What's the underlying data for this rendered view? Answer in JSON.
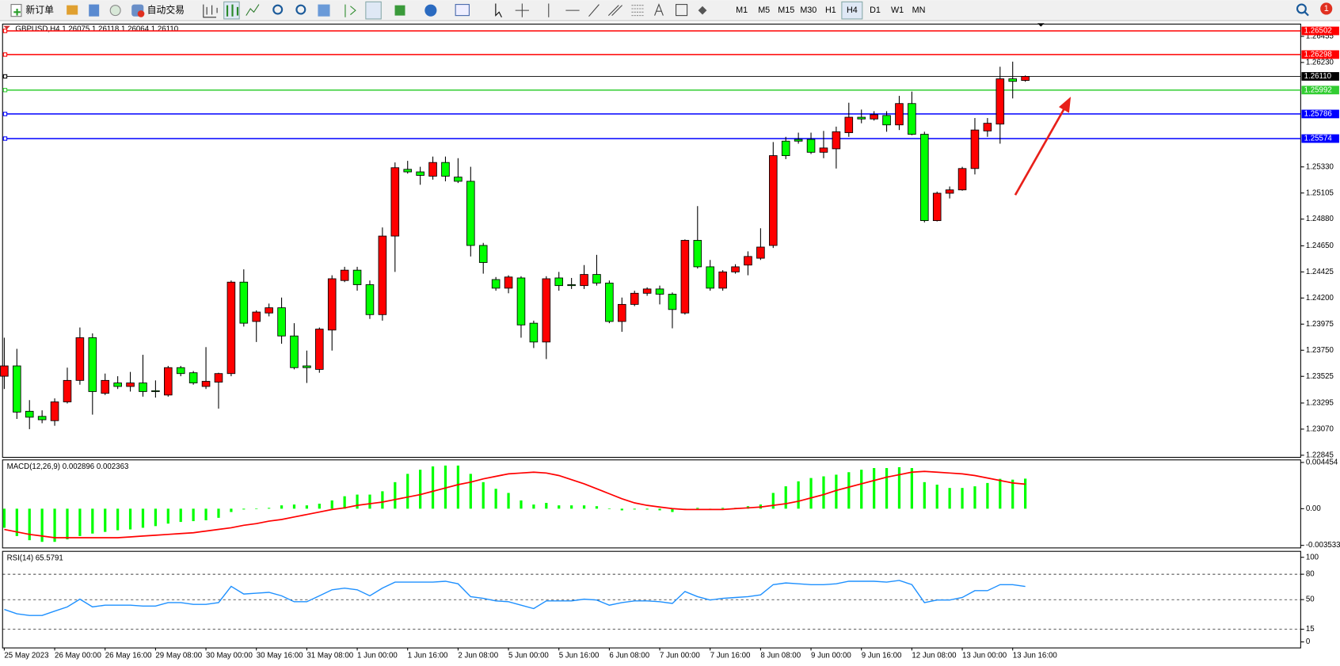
{
  "toolbar": {
    "new_order": "新订单",
    "auto_trading": "自动交易",
    "timeframes": [
      "M1",
      "M5",
      "M15",
      "M30",
      "H1",
      "H4",
      "D1",
      "W1",
      "MN"
    ],
    "active_timeframe": "H4",
    "badge": "1"
  },
  "chart_data": [
    {
      "type": "candlestick",
      "title": "GBPUSD,H4  1.26075 1.26118 1.26064 1.26110",
      "categories": [
        "25 May 2023",
        null,
        null,
        null,
        "26 May 00:00",
        null,
        null,
        null,
        "26 May 16:00",
        null,
        null,
        null,
        "29 May 08:00",
        null,
        null,
        null,
        "30 May 00:00",
        null,
        null,
        null,
        "30 May 16:00",
        null,
        null,
        null,
        "31 May 08:00",
        null,
        null,
        null,
        "1 Jun 00:00",
        null,
        null,
        null,
        "1 Jun 16:00",
        null,
        null,
        null,
        "2 Jun 08:00",
        null,
        null,
        null,
        "5 Jun 00:00",
        null,
        null,
        null,
        "5 Jun 16:00",
        null,
        null,
        null,
        "6 Jun 08:00",
        null,
        null,
        null,
        "7 Jun 00:00",
        null,
        null,
        null,
        "7 Jun 16:00",
        null,
        null,
        null,
        "8 Jun 08:00",
        null,
        null,
        null,
        "9 Jun 00:00",
        null,
        null,
        null,
        "9 Jun 16:00",
        null,
        null,
        null,
        "12 Jun 08:00",
        null,
        null,
        null,
        "13 Jun 00:00",
        null,
        null,
        null,
        "13 Jun 16:00",
        null
      ],
      "open": [
        1.23526,
        1.23615,
        1.23224,
        1.2318,
        1.23143,
        1.23305,
        1.2349,
        1.23858,
        1.23379,
        1.23468,
        1.23438,
        1.23468,
        1.23401,
        1.23364,
        1.236,
        1.23556,
        1.23438,
        1.23475,
        1.23549,
        1.24337,
        1.23998,
        1.24071,
        1.24116,
        1.23873,
        1.23615,
        1.23585,
        1.23924,
        1.24351,
        1.2444,
        1.24315,
        1.24057,
        1.24734,
        1.25309,
        1.25287,
        1.2525,
        1.25368,
        1.25242,
        1.25206,
        1.24653,
        1.24359,
        1.24285,
        1.24373,
        1.23983,
        1.23821,
        1.24373,
        1.24315,
        1.24307,
        1.24403,
        1.24329,
        1.23998,
        1.24145,
        1.24241,
        1.24278,
        1.24233,
        1.24071,
        1.24697,
        1.24469,
        1.24285,
        1.24425,
        1.24484,
        1.24543,
        1.24653,
        1.25552,
        1.25567,
        1.25567,
        1.25456,
        1.25486,
        1.25625,
        1.25758,
        1.25743,
        1.25773,
        1.25692,
        1.25876,
        1.25611,
        1.24867,
        1.25103,
        1.25132,
        1.25316,
        1.2564,
        1.25699,
        1.26089,
        1.26075
      ],
      "high": [
        1.23858,
        1.23762,
        1.2332,
        1.23232,
        1.23335,
        1.236,
        1.23946,
        1.23895,
        1.23549,
        1.23526,
        1.23563,
        1.23711,
        1.2349,
        1.23615,
        1.23615,
        1.23571,
        1.23777,
        1.23556,
        1.24351,
        1.24447,
        1.24094,
        1.24152,
        1.24204,
        1.23983,
        1.23747,
        1.23946,
        1.24396,
        1.24469,
        1.24469,
        1.24351,
        1.24808,
        1.25368,
        1.25382,
        1.25331,
        1.25419,
        1.25419,
        1.25405,
        1.25331,
        1.24675,
        1.24381,
        1.24396,
        1.24388,
        1.24005,
        1.24388,
        1.24425,
        1.24373,
        1.24484,
        1.24572,
        1.24351,
        1.24204,
        1.24263,
        1.24292,
        1.24307,
        1.24248,
        1.24705,
        1.24992,
        1.24528,
        1.2444,
        1.24491,
        1.24602,
        1.24801,
        1.25544,
        1.25589,
        1.25625,
        1.25625,
        1.2564,
        1.25677,
        1.25883,
        1.25824,
        1.2581,
        1.2581,
        1.25942,
        1.25979,
        1.25633,
        1.25117,
        1.25161,
        1.25331,
        1.25751,
        1.25751,
        1.26193,
        1.26237,
        1.26118
      ],
      "low": [
        1.23416,
        1.23158,
        1.2307,
        1.23121,
        1.23099,
        1.23291,
        1.23453,
        1.23195,
        1.23364,
        1.23416,
        1.23394,
        1.2335,
        1.23342,
        1.2335,
        1.23526,
        1.23453,
        1.23416,
        1.23247,
        1.23526,
        1.23954,
        1.23821,
        1.24042,
        1.23806,
        1.23585,
        1.23468,
        1.23556,
        1.23747,
        1.24337,
        1.24263,
        1.2402,
        1.24005,
        1.24425,
        1.25272,
        1.25176,
        1.2522,
        1.25206,
        1.25191,
        1.24558,
        1.2441,
        1.24263,
        1.24241,
        1.23858,
        1.23769,
        1.23674,
        1.24263,
        1.24278,
        1.24278,
        1.24307,
        1.23983,
        1.23909,
        1.2413,
        1.24219,
        1.24145,
        1.23939,
        1.24057,
        1.24454,
        1.24263,
        1.24263,
        1.2441,
        1.24396,
        1.24528,
        1.24631,
        1.25397,
        1.2553,
        1.25441,
        1.25405,
        1.25316,
        1.25589,
        1.25706,
        1.25729,
        1.25633,
        1.25648,
        1.25603,
        1.24852,
        1.2486,
        1.25058,
        1.25125,
        1.25265,
        1.25589,
        1.2553,
        1.2592,
        1.26064
      ],
      "close": [
        1.23615,
        1.23217,
        1.23173,
        1.23151,
        1.23305,
        1.2349,
        1.23858,
        1.23394,
        1.2349,
        1.23438,
        1.23468,
        1.23394,
        1.23394,
        1.236,
        1.23549,
        1.23468,
        1.23482,
        1.23549,
        1.24337,
        1.23983,
        1.24079,
        1.24116,
        1.23873,
        1.236,
        1.236,
        1.23932,
        1.24366,
        1.2444,
        1.24315,
        1.24057,
        1.24734,
        1.25323,
        1.25287,
        1.25257,
        1.25368,
        1.2525,
        1.25206,
        1.24653,
        1.24506,
        1.24285,
        1.24381,
        1.23968,
        1.23821,
        1.24366,
        1.24307,
        1.24307,
        1.24403,
        1.24329,
        1.23998,
        1.24145,
        1.24241,
        1.24278,
        1.24233,
        1.24101,
        1.24697,
        1.24469,
        1.24285,
        1.24425,
        1.24469,
        1.24558,
        1.24639,
        1.25427,
        1.25427,
        1.25552,
        1.25456,
        1.25493,
        1.25633,
        1.25758,
        1.25743,
        1.2578,
        1.25692,
        1.25876,
        1.25611,
        1.24867,
        1.25103,
        1.25132,
        1.25316,
        1.25648,
        1.25706,
        1.26089,
        1.26067,
        1.2611
      ],
      "up_color": "#ff0000",
      "down_color": "#00ff00",
      "ylim": [
        1.22827,
        1.26546
      ],
      "yticks": [
        1.26455,
        {
          "value": 1.2623,
          "label": "1.26230"
        },
        {
          "value": 1.2533,
          "label": "1.25330"
        },
        1.25105,
        {
          "value": 1.2488,
          "label": "1.24880"
        },
        {
          "value": 1.2465,
          "label": "1.24650"
        },
        1.24425,
        {
          "value": 1.242,
          "label": "1.24200"
        },
        1.23975,
        {
          "value": 1.2375,
          "label": "1.23750"
        },
        1.23525,
        1.23295,
        {
          "value": 1.2307,
          "label": "1.23070"
        },
        1.22845
      ],
      "hlines": [
        {
          "value": 1.26502,
          "color": "#ff0000"
        },
        {
          "value": 1.26298,
          "color": "#ff0000"
        },
        {
          "value": 1.2611,
          "label": "1.26110",
          "color": "#000000"
        },
        {
          "value": 1.25992,
          "color": "#32cd32"
        },
        {
          "value": 1.25786,
          "color": "#0000ff"
        },
        {
          "value": 1.25574,
          "color": "#0000ff"
        }
      ]
    },
    {
      "type": "macd",
      "title": "MACD(12,26,9) 0.002896 0.002363",
      "series": [
        {
          "type": "bar",
          "color": "#00ff00",
          "values": [
            -0.001838,
            -0.002637,
            -0.003036,
            -0.003196,
            -0.003196,
            -0.002956,
            -0.002637,
            -0.002397,
            -0.002237,
            -0.002077,
            -0.001998,
            -0.001838,
            -0.001678,
            -0.001438,
            -0.001278,
            -0.001199,
            -0.001119,
            -0.000879,
            -0.00032,
            -8e-05,
            2e-05,
            8e-05,
            0.00032,
            0.0004,
            0.00032,
            0.000479,
            0.000799,
            0.001199,
            0.001358,
            0.001358,
            0.001678,
            0.002557,
            0.003356,
            0.003755,
            0.004075,
            0.004155,
            0.004155,
            0.003356,
            0.002557,
            0.001918,
            0.001518,
            0.000799,
            0.0004,
            0.000559,
            0.00032,
            0.00032,
            0.00032,
            0.00024,
            2e-05,
            -0.00016,
            -8e-05,
            -8e-05,
            -0.00016,
            -0.00032,
            -8e-05,
            8e-05,
            -2e-05,
            8e-05,
            8e-05,
            0.00024,
            0.0004,
            0.001518,
            0.002157,
            0.002637,
            0.002956,
            0.003116,
            0.003276,
            0.003516,
            0.003755,
            0.003915,
            0.003915,
            0.003995,
            0.003915,
            0.002557,
            0.002317,
            0.001998,
            0.001998,
            0.002157,
            0.002477,
            0.002876,
            0.002796,
            0.002896
          ]
        },
        {
          "type": "line",
          "color": "#ff0000",
          "values": [
            -0.001998,
            -0.002237,
            -0.002477,
            -0.002637,
            -0.002797,
            -0.002797,
            -0.002797,
            -0.002797,
            -0.002797,
            -0.002797,
            -0.002717,
            -0.002637,
            -0.002557,
            -0.002477,
            -0.002397,
            -0.002317,
            -0.002157,
            -0.001998,
            -0.001838,
            -0.001598,
            -0.001438,
            -0.001199,
            -0.001039,
            -0.000799,
            -0.000559,
            -0.00032,
            -8e-05,
            8e-05,
            0.00032,
            0.000479,
            0.000639,
            0.000879,
            0.001119,
            0.001358,
            0.001678,
            0.001998,
            0.002317,
            0.002557,
            0.002876,
            0.003116,
            0.003356,
            0.003436,
            0.003516,
            0.003436,
            0.003196,
            0.002797,
            0.002397,
            0.001918,
            0.001438,
            0.000959,
            0.000559,
            0.00032,
            0.00016,
            1e-05,
            -8e-05,
            -8e-05,
            -8e-05,
            -8e-05,
            1e-05,
            8e-05,
            0.00016,
            0.00032,
            0.000479,
            0.000719,
            0.001039,
            0.001358,
            0.001758,
            0.002077,
            0.002397,
            0.002717,
            0.003036,
            0.003276,
            0.003516,
            0.003596,
            0.003516,
            0.003436,
            0.003356,
            0.003196,
            0.002956,
            0.002717,
            0.002477,
            0.002363
          ]
        }
      ],
      "ylim": [
        -0.003533,
        0.004454
      ],
      "yticks": [
        0.004454,
        {
          "value": 0,
          "label": "0.00"
        },
        -0.003533
      ]
    },
    {
      "type": "line",
      "title": "RSI(14) 65.5791",
      "color": "#1e90ff",
      "values": [
        38.4,
        33.3,
        31.3,
        31.3,
        36.4,
        41.4,
        50.5,
        41.4,
        43.4,
        43.4,
        43.4,
        42.4,
        42.4,
        46.5,
        46.5,
        44.4,
        44.4,
        46.5,
        65.7,
        56.6,
        57.6,
        58.6,
        54.5,
        47.5,
        47.5,
        54.5,
        61.6,
        63.6,
        61.6,
        54.5,
        63.6,
        70.7,
        70.7,
        70.7,
        70.7,
        71.7,
        68.7,
        53.5,
        51.5,
        48.5,
        47.5,
        43.4,
        39.4,
        48.5,
        48.5,
        48.5,
        50.5,
        49.5,
        43.4,
        46.5,
        48.5,
        48.5,
        47.5,
        45.5,
        59.6,
        53.5,
        49.5,
        51.5,
        52.5,
        53.5,
        55.6,
        67.7,
        69.7,
        68.7,
        67.7,
        67.7,
        68.7,
        71.7,
        71.7,
        71.7,
        70.7,
        72.7,
        67.7,
        46.5,
        49.5,
        49.5,
        52.5,
        60.6,
        60.6,
        67.7,
        67.7,
        65.5791
      ],
      "ylim": [
        0,
        100
      ],
      "yticks": [
        100,
        80,
        50,
        15,
        0
      ]
    }
  ]
}
